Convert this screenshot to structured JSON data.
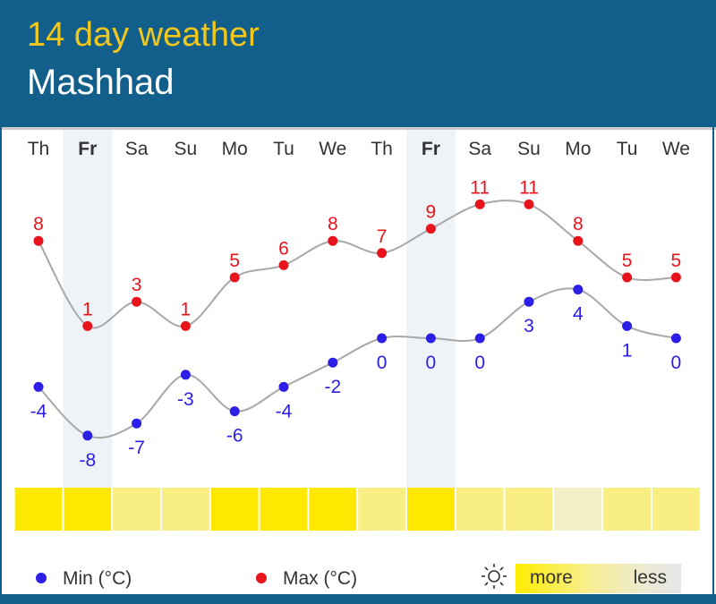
{
  "header": {
    "title": "14 day weather",
    "city": "Mashhad"
  },
  "legend": {
    "min_label": "Min (°C)",
    "max_label": "Max (°C)",
    "sun_more": "more",
    "sun_less": "less"
  },
  "colors": {
    "min": "#2b1ee6",
    "max": "#e8141c",
    "weekend_band": "#eef3f8",
    "sun_levels": [
      "#ffe800",
      "#f8ee82",
      "#f3efc6"
    ]
  },
  "chart_data": {
    "type": "line",
    "categories": [
      "Th",
      "Fr",
      "Sa",
      "Su",
      "Mo",
      "Tu",
      "We",
      "Th",
      "Fr",
      "Sa",
      "Su",
      "Mo",
      "Tu",
      "We"
    ],
    "highlighted": [
      1,
      8
    ],
    "series": [
      {
        "name": "Max (°C)",
        "values": [
          8,
          1,
          3,
          1,
          5,
          6,
          8,
          7,
          9,
          11,
          11,
          8,
          5,
          5
        ]
      },
      {
        "name": "Min (°C)",
        "values": [
          -4,
          -8,
          -7,
          -3,
          -6,
          -4,
          -2,
          0,
          0,
          0,
          3,
          4,
          1,
          0
        ]
      }
    ],
    "sunshine": [
      0,
      0,
      1,
      1,
      0,
      0,
      0,
      1,
      0,
      1,
      1,
      2,
      1,
      1
    ]
  }
}
